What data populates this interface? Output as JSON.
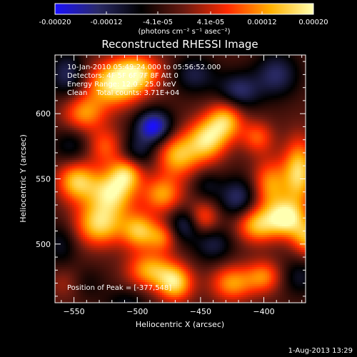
{
  "colorbar": {
    "ticks": [
      "-0.00020",
      "-0.00012",
      "-4.1e-05",
      "4.1e-05",
      "0.00012",
      "0.00020"
    ],
    "units": "(photons cm⁻² s⁻¹ asec⁻²)",
    "range": [
      -0.0002,
      0.0002
    ],
    "stops": [
      "#1a10ff",
      "#2a2a66",
      "#000000",
      "#6a1a10",
      "#ff2a00",
      "#ffb000",
      "#ffffb0"
    ]
  },
  "chart_data": {
    "type": "heatmap",
    "title": "Reconstructed RHESSI Image",
    "xlabel": "Heliocentric X (arcsec)",
    "ylabel": "Heliocentric Y (arcsec)",
    "xlim": [
      -565,
      -367
    ],
    "ylim": [
      455,
      645
    ],
    "xticks": [
      {
        "v": -550,
        "label": "−550"
      },
      {
        "v": -500,
        "label": "−500"
      },
      {
        "v": -450,
        "label": "−450"
      },
      {
        "v": -400,
        "label": "−400"
      }
    ],
    "yticks": [
      {
        "v": 500,
        "label": "500"
      },
      {
        "v": 550,
        "label": "550"
      },
      {
        "v": 600,
        "label": "600"
      }
    ],
    "blobs": [
      {
        "x": -518,
        "y": 622,
        "a": 1.0,
        "sx": 16,
        "sy": 12
      },
      {
        "x": -500,
        "y": 632,
        "a": 0.8,
        "sx": 14,
        "sy": 10
      },
      {
        "x": -542,
        "y": 600,
        "a": 0.7,
        "sx": 12,
        "sy": 10
      },
      {
        "x": -525,
        "y": 575,
        "a": 0.55,
        "sx": 10,
        "sy": 10
      },
      {
        "x": -548,
        "y": 548,
        "a": 0.9,
        "sx": 11,
        "sy": 11
      },
      {
        "x": -520,
        "y": 540,
        "a": 1.0,
        "sx": 13,
        "sy": 12
      },
      {
        "x": -508,
        "y": 555,
        "a": 0.75,
        "sx": 9,
        "sy": 9
      },
      {
        "x": -530,
        "y": 515,
        "a": 0.95,
        "sx": 14,
        "sy": 12
      },
      {
        "x": -498,
        "y": 510,
        "a": 0.85,
        "sx": 10,
        "sy": 10
      },
      {
        "x": -480,
        "y": 538,
        "a": 0.75,
        "sx": 11,
        "sy": 10
      },
      {
        "x": -490,
        "y": 480,
        "a": 0.8,
        "sx": 13,
        "sy": 10
      },
      {
        "x": -470,
        "y": 470,
        "a": 0.95,
        "sx": 10,
        "sy": 10
      },
      {
        "x": -468,
        "y": 568,
        "a": 0.85,
        "sx": 12,
        "sy": 12
      },
      {
        "x": -445,
        "y": 580,
        "a": 0.95,
        "sx": 11,
        "sy": 12
      },
      {
        "x": -430,
        "y": 595,
        "a": 0.85,
        "sx": 10,
        "sy": 11
      },
      {
        "x": -405,
        "y": 582,
        "a": 0.55,
        "sx": 9,
        "sy": 9
      },
      {
        "x": -395,
        "y": 545,
        "a": 0.75,
        "sx": 10,
        "sy": 14
      },
      {
        "x": -372,
        "y": 555,
        "a": 1.0,
        "sx": 9,
        "sy": 18
      },
      {
        "x": -405,
        "y": 515,
        "a": 0.9,
        "sx": 12,
        "sy": 10
      },
      {
        "x": -382,
        "y": 520,
        "a": 1.0,
        "sx": 10,
        "sy": 10
      },
      {
        "x": -365,
        "y": 505,
        "a": 0.8,
        "sx": 9,
        "sy": 10
      },
      {
        "x": -448,
        "y": 520,
        "a": 0.6,
        "sx": 9,
        "sy": 9
      },
      {
        "x": -425,
        "y": 470,
        "a": 0.75,
        "sx": 12,
        "sy": 10
      },
      {
        "x": -400,
        "y": 475,
        "a": 0.65,
        "sx": 10,
        "sy": 9
      },
      {
        "x": -480,
        "y": 505,
        "a": 0.55,
        "sx": 8,
        "sy": 8
      },
      {
        "x": -555,
        "y": 470,
        "a": 0.4,
        "sx": 10,
        "sy": 9
      },
      {
        "x": -487,
        "y": 590,
        "a": -0.95,
        "sx": 10,
        "sy": 9
      },
      {
        "x": -420,
        "y": 617,
        "a": -0.6,
        "sx": 12,
        "sy": 10
      },
      {
        "x": -420,
        "y": 535,
        "a": -0.6,
        "sx": 11,
        "sy": 11
      },
      {
        "x": -555,
        "y": 630,
        "a": -0.55,
        "sx": 10,
        "sy": 12
      },
      {
        "x": -390,
        "y": 630,
        "a": -0.55,
        "sx": 12,
        "sy": 12
      },
      {
        "x": -552,
        "y": 575,
        "a": -0.35,
        "sx": 10,
        "sy": 10
      },
      {
        "x": -462,
        "y": 515,
        "a": -0.55,
        "sx": 9,
        "sy": 9
      },
      {
        "x": -440,
        "y": 500,
        "a": -0.45,
        "sx": 11,
        "sy": 10
      },
      {
        "x": -500,
        "y": 570,
        "a": -0.45,
        "sx": 10,
        "sy": 9
      },
      {
        "x": -560,
        "y": 500,
        "a": -0.35,
        "sx": 9,
        "sy": 12
      },
      {
        "x": -545,
        "y": 470,
        "a": -0.3,
        "sx": 12,
        "sy": 9
      },
      {
        "x": -455,
        "y": 630,
        "a": -0.45,
        "sx": 12,
        "sy": 10
      },
      {
        "x": -372,
        "y": 475,
        "a": -0.35,
        "sx": 10,
        "sy": 10
      },
      {
        "x": -508,
        "y": 455,
        "a": -0.3,
        "sx": 12,
        "sy": 8
      },
      {
        "x": -445,
        "y": 545,
        "a": -0.3,
        "sx": 8,
        "sy": 8
      }
    ]
  },
  "info": {
    "time": "10-Jan-2010 05:49:24.000 to 05:56:52.000",
    "detectors": "Detectors: 4F 5F 6F 7F 8F  Att 0",
    "energy": "Energy Range: 12.0 - 25.0 keV",
    "clean": "Clean    Total counts: 3.71E+04",
    "peak": "Position of Peak = [-377,548]"
  },
  "footer": {
    "date": "1-Aug-2013 13:29"
  }
}
